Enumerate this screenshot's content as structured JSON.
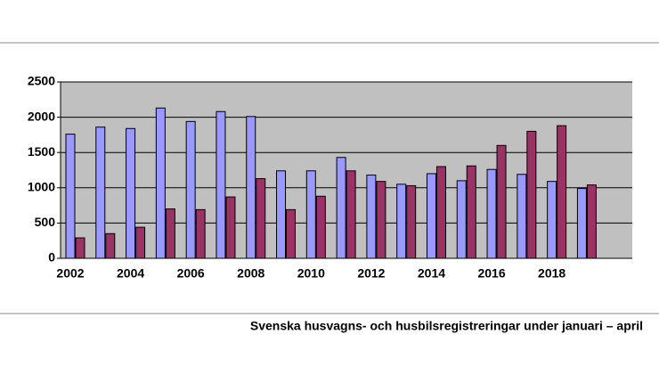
{
  "chart_data": {
    "type": "bar",
    "caption": "Svenska husvagns- och husbilsregistreringar under januari – april",
    "categories": [
      "2002",
      null,
      "2004",
      null,
      "2006",
      null,
      "2008",
      null,
      "2010",
      null,
      "2012",
      null,
      "2014",
      null,
      "2016",
      null,
      "2018",
      null,
      null
    ],
    "series": [
      {
        "color": "#9999ff",
        "values": [
          1760,
          1860,
          1840,
          2130,
          1940,
          2080,
          2010,
          1240,
          1240,
          1430,
          1180,
          1050,
          1200,
          1100,
          1260,
          1190,
          1090,
          990,
          null
        ]
      },
      {
        "color": "#993366",
        "values": [
          290,
          350,
          440,
          700,
          690,
          870,
          1130,
          690,
          880,
          1240,
          1090,
          1030,
          1300,
          1310,
          1600,
          1800,
          1880,
          1040,
          null
        ]
      }
    ],
    "ylim": [
      0,
      2500
    ],
    "yticks": [
      0,
      500,
      1000,
      1500,
      2000,
      2500
    ],
    "grid": true,
    "plot_background": "#c0c0c0"
  }
}
